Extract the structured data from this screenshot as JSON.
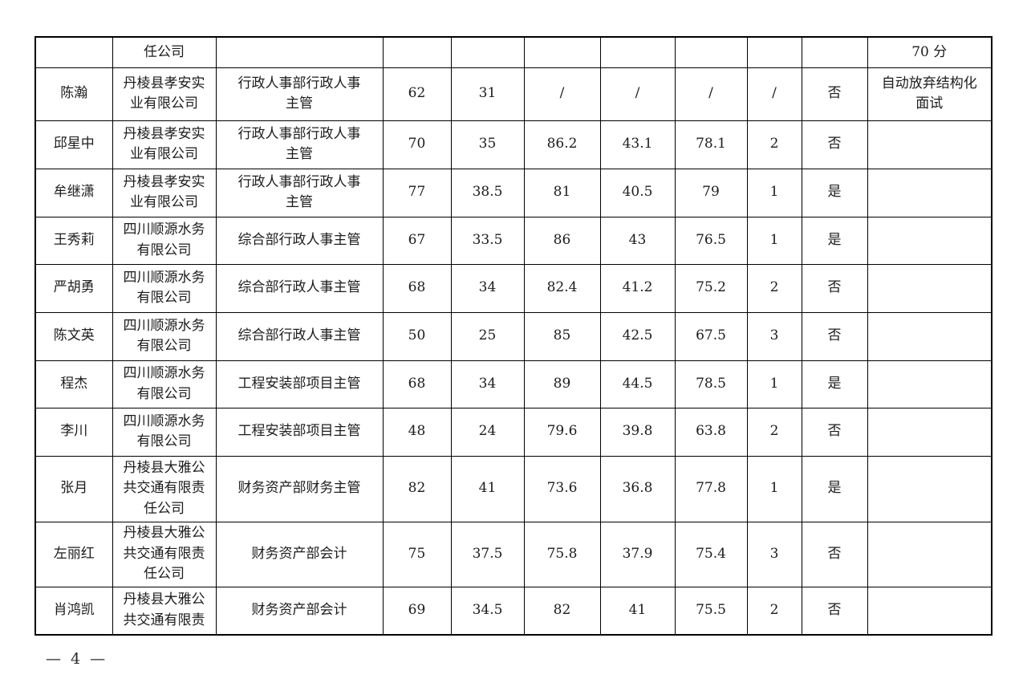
{
  "page": {
    "background_color": "#ffffff",
    "ink_color": "#1c1c1c",
    "page_number": "— 4 —"
  },
  "table": {
    "note": "continuation of a table from a previous page; only partial header text is visible",
    "header_row": {
      "cells": [
        "",
        "任公司",
        "",
        "",
        "",
        "",
        "",
        "",
        "",
        "",
        "70 分"
      ]
    },
    "rows": [
      {
        "cells": [
          "陈瀚",
          "丹棱县孝安实业有限公司",
          "行政人事部行政人事主管",
          "62",
          "31",
          "/",
          "/",
          "/",
          "/",
          "否",
          "自动放弃结构化面试"
        ]
      },
      {
        "cells": [
          "邱星中",
          "丹棱县孝安实业有限公司",
          "行政人事部行政人事主管",
          "70",
          "35",
          "86.2",
          "43.1",
          "78.1",
          "2",
          "否",
          ""
        ]
      },
      {
        "cells": [
          "牟继潇",
          "丹棱县孝安实业有限公司",
          "行政人事部行政人事主管",
          "77",
          "38.5",
          "81",
          "40.5",
          "79",
          "1",
          "是",
          ""
        ]
      },
      {
        "cells": [
          "王秀莉",
          "四川顺源水务有限公司",
          "综合部行政人事主管",
          "67",
          "33.5",
          "86",
          "43",
          "76.5",
          "1",
          "是",
          ""
        ]
      },
      {
        "cells": [
          "严胡勇",
          "四川顺源水务有限公司",
          "综合部行政人事主管",
          "68",
          "34",
          "82.4",
          "41.2",
          "75.2",
          "2",
          "否",
          ""
        ]
      },
      {
        "cells": [
          "陈文英",
          "四川顺源水务有限公司",
          "综合部行政人事主管",
          "50",
          "25",
          "85",
          "42.5",
          "67.5",
          "3",
          "否",
          ""
        ]
      },
      {
        "cells": [
          "程杰",
          "四川顺源水务有限公司",
          "工程安装部项目主管",
          "68",
          "34",
          "89",
          "44.5",
          "78.5",
          "1",
          "是",
          ""
        ]
      },
      {
        "cells": [
          "李川",
          "四川顺源水务有限公司",
          "工程安装部项目主管",
          "48",
          "24",
          "79.6",
          "39.8",
          "63.8",
          "2",
          "否",
          ""
        ]
      },
      {
        "cells": [
          "张月",
          "丹棱县大雅公共交通有限责任公司",
          "财务资产部财务主管",
          "82",
          "41",
          "73.6",
          "36.8",
          "77.8",
          "1",
          "是",
          ""
        ]
      },
      {
        "cells": [
          "左丽红",
          "丹棱县大雅公共交通有限责任公司",
          "财务资产部会计",
          "75",
          "37.5",
          "75.8",
          "37.9",
          "75.4",
          "3",
          "否",
          ""
        ]
      },
      {
        "cells": [
          "肖鸿凯",
          "丹棱县大雅公共交通有限责",
          "财务资产部会计",
          "69",
          "34.5",
          "82",
          "41",
          "75.5",
          "2",
          "否",
          ""
        ]
      }
    ]
  }
}
